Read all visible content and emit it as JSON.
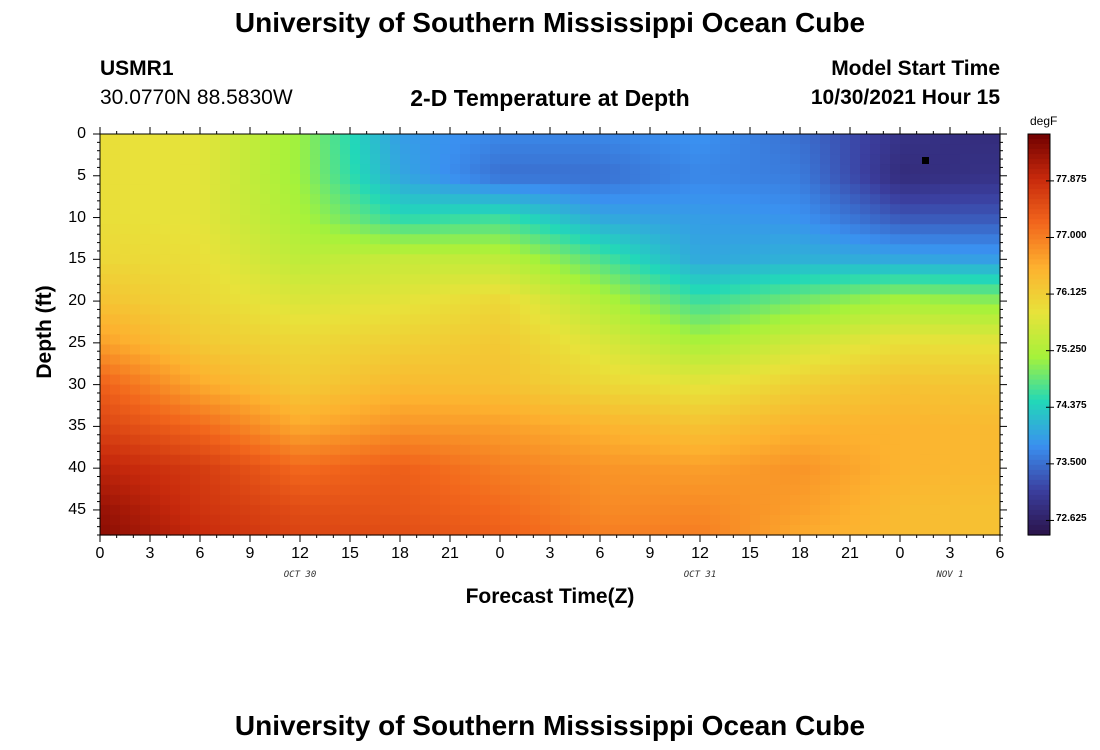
{
  "titles": {
    "top": "University of Southern Mississippi Ocean Cube",
    "bottom": "University of Southern Mississippi Ocean Cube"
  },
  "header": {
    "station_id": "USMR1",
    "coords": "30.0770N  88.5830W",
    "plot_title": "2-D Temperature at Depth",
    "model_label": "Model Start Time",
    "model_time": "10/30/2021 Hour 15"
  },
  "chart_data": {
    "type": "heatmap",
    "title": "2-D Temperature at Depth",
    "xlabel": "Forecast Time(Z)",
    "ylabel": "Depth (ft)",
    "x_tick_labels": [
      "0",
      "3",
      "6",
      "9",
      "12",
      "15",
      "18",
      "21",
      "0",
      "3",
      "6",
      "9",
      "12",
      "15",
      "18",
      "21",
      "0",
      "3",
      "6"
    ],
    "x_date_labels": [
      {
        "label": "OCT 30",
        "at_tick": 4
      },
      {
        "label": "OCT 31",
        "at_tick": 12
      },
      {
        "label": "NOV 1",
        "at_tick": 17
      }
    ],
    "x_range_hours": [
      0,
      54
    ],
    "y_tick_labels": [
      0,
      5,
      10,
      15,
      20,
      25,
      30,
      35,
      40,
      45
    ],
    "y_range_ft": [
      0,
      48
    ],
    "y_inverted": true,
    "colorbar": {
      "unit": "degF",
      "min": 72.4,
      "max": 78.6,
      "tick_labels": [
        "77.875",
        "77.000",
        "76.125",
        "75.250",
        "74.375",
        "73.500",
        "72.625"
      ],
      "colors": [
        "#2a1249",
        "#3b3f9f",
        "#3a90f0",
        "#22d8b8",
        "#a6f23a",
        "#e8e23a",
        "#fdb12f",
        "#f2661c",
        "#c7290c",
        "#700000"
      ]
    },
    "marker_note": "square marker near 1.5h Nov 1, 3 ft",
    "temperature_grid": {
      "x_hours": [
        0,
        6,
        12,
        18,
        24,
        30,
        36,
        42,
        48,
        54
      ],
      "y_depths_ft": [
        0,
        5,
        10,
        15,
        20,
        25,
        30,
        35,
        40,
        45,
        48
      ],
      "values_degF": [
        [
          75.9,
          75.8,
          75.1,
          73.9,
          73.7,
          73.7,
          73.8,
          73.5,
          72.9,
          72.8
        ],
        [
          75.9,
          75.8,
          75.1,
          74.0,
          73.5,
          73.5,
          73.7,
          73.6,
          72.8,
          72.9
        ],
        [
          75.9,
          75.8,
          75.2,
          74.5,
          74.6,
          74.0,
          73.9,
          73.8,
          73.3,
          73.3
        ],
        [
          76.0,
          75.9,
          75.4,
          75.5,
          75.4,
          74.7,
          74.0,
          74.1,
          74.0,
          73.9
        ],
        [
          76.3,
          76.0,
          75.7,
          75.8,
          76.0,
          75.3,
          74.6,
          74.9,
          75.2,
          75.0
        ],
        [
          76.7,
          76.2,
          76.0,
          76.1,
          76.2,
          75.7,
          75.2,
          75.6,
          75.9,
          75.8
        ],
        [
          77.3,
          76.6,
          76.2,
          76.4,
          76.3,
          76.0,
          75.8,
          76.1,
          76.3,
          76.2
        ],
        [
          77.6,
          77.2,
          76.6,
          76.8,
          76.7,
          76.5,
          76.3,
          76.5,
          76.5,
          76.4
        ],
        [
          78.0,
          77.7,
          77.2,
          77.3,
          77.0,
          76.8,
          76.7,
          76.8,
          76.5,
          76.4
        ],
        [
          78.3,
          77.8,
          77.5,
          77.4,
          77.2,
          76.9,
          76.9,
          76.7,
          76.4,
          76.3
        ],
        [
          78.4,
          77.9,
          77.6,
          77.5,
          77.3,
          77.0,
          77.0,
          76.6,
          76.4,
          76.3
        ]
      ]
    }
  }
}
